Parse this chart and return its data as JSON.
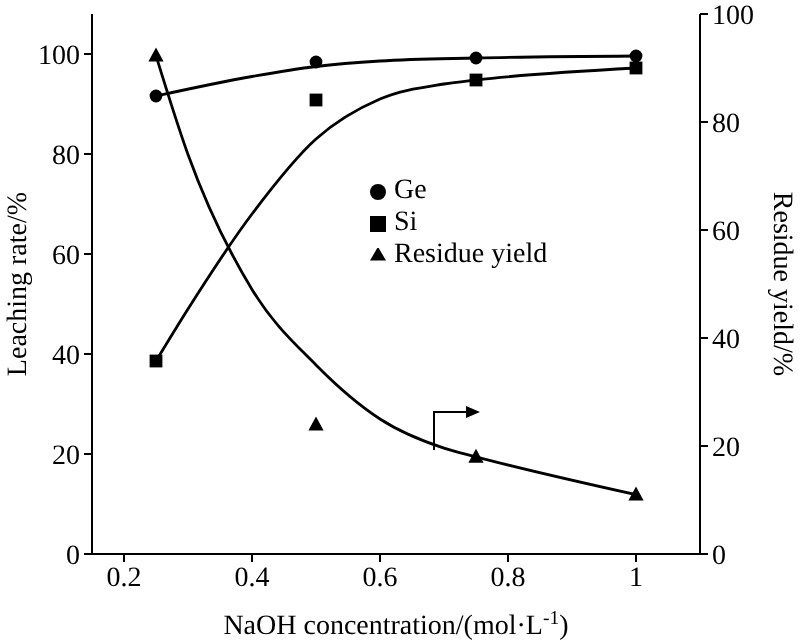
{
  "chart_data": {
    "type": "scatter",
    "xlabel": "NaOH concentration/(mol·L$^{-1}$)",
    "ylabel": "Leaching rate/%",
    "y2label": "Residue yield/%",
    "xlim": [
      0.15,
      1.1
    ],
    "xticks": [
      0.2,
      0.4,
      0.6,
      0.8,
      1.0
    ],
    "ylim": [
      0,
      108
    ],
    "yticks": [
      0,
      20,
      40,
      60,
      80,
      100
    ],
    "y2lim": [
      0,
      100
    ],
    "y2ticks": [
      0,
      20,
      40,
      60,
      80,
      100
    ],
    "legend": "right",
    "grid": false,
    "series": [
      {
        "name": "Ge",
        "type": "scatter",
        "marker": "circle",
        "color": "#000000",
        "x": [
          0.25,
          0.5,
          0.75,
          1.0
        ],
        "values": [
          91.6,
          98.4,
          99.2,
          99.6
        ]
      },
      {
        "name": "Si",
        "type": "scatter",
        "marker": "square",
        "color": "#000000",
        "x": [
          0.25,
          0.5,
          0.75,
          1.0
        ],
        "values": [
          38.6,
          90.8,
          94.8,
          97.2
        ]
      },
      {
        "name": "Residue yield",
        "type": "scatter",
        "marker": "triangle",
        "axis": "y2",
        "color": "#000000",
        "x": [
          0.25,
          0.5,
          0.75,
          1.0
        ],
        "values": [
          92.3,
          24,
          18,
          11
        ]
      },
      {
        "type": "line",
        "marker": "none",
        "color": "#000000",
        "x": [
          0.25,
          0.4,
          0.5,
          0.6,
          0.75,
          1.0
        ],
        "values": [
          91.6,
          95.5,
          97.5,
          98.6,
          99.2,
          99.6
        ]
      },
      {
        "type": "line",
        "marker": "none",
        "color": "#000000",
        "x": [
          0.25,
          0.3,
          0.4,
          0.5,
          0.6,
          0.7,
          0.75,
          1.0
        ],
        "values": [
          38.6,
          49,
          68,
          83,
          91,
          94,
          94.8,
          97.2
        ]
      },
      {
        "type": "line",
        "marker": "none",
        "axis": "y2",
        "color": "#000000",
        "x": [
          0.25,
          0.3,
          0.4,
          0.5,
          0.6,
          0.7,
          0.75,
          1.0
        ],
        "values": [
          92.3,
          74,
          49,
          35,
          25,
          19.6,
          18,
          11
        ]
      }
    ]
  }
}
